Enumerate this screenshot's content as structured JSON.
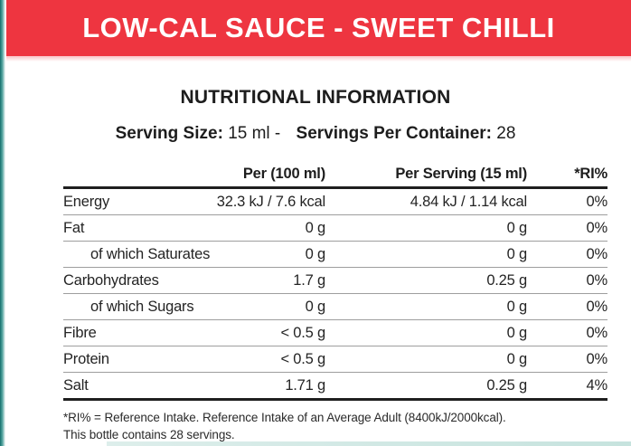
{
  "banner": {
    "title": "LOW-CAL SAUCE - SWEET CHILLI"
  },
  "section": {
    "title": "NUTRITIONAL INFORMATION"
  },
  "serving": {
    "size_label": "Serving Size:",
    "size_value_with_dash": "15 ml -",
    "per_container_label": "Servings Per Container:",
    "per_container_value": "28"
  },
  "table": {
    "columns": [
      "",
      "Per (100 ml)",
      "Per Serving (15 ml)",
      "*RI%"
    ],
    "rows": [
      {
        "label": "Energy",
        "per_100": "32.3 kJ / 7.6 kcal",
        "per_serving": "4.84 kJ / 1.14 kcal",
        "ri": "0%"
      },
      {
        "label": "Fat",
        "per_100": "0 g",
        "per_serving": "0 g",
        "ri": "0%"
      },
      {
        "label": "of which Saturates",
        "per_100": "0 g",
        "per_serving": "0 g",
        "ri": "0%"
      },
      {
        "label": "Carbohydrates",
        "per_100": "1.7 g",
        "per_serving": "0.25 g",
        "ri": "0%"
      },
      {
        "label": "of which Sugars",
        "per_100": "0 g",
        "per_serving": "0 g",
        "ri": "0%"
      },
      {
        "label": "Fibre",
        "per_100": "< 0.5 g",
        "per_serving": "0 g",
        "ri": "0%"
      },
      {
        "label": "Protein",
        "per_100": "< 0.5 g",
        "per_serving": "0 g",
        "ri": "0%"
      },
      {
        "label": "Salt",
        "per_100": "1.71 g",
        "per_serving": "0.25 g",
        "ri": "4%"
      }
    ]
  },
  "footnote": {
    "line1": "*RI% = Reference Intake. Reference Intake of an Average Adult (8400kJ/2000kcal).",
    "line2": "This bottle contains 28 servings."
  },
  "colors": {
    "banner_red": "#ee3540",
    "edge_teal": "#146f6d",
    "bottom_strip_teal": "#c6e3de",
    "text_dark": "#242424",
    "divider_gray": "#9e9e9e",
    "divider_dark": "#1f1f1f"
  }
}
